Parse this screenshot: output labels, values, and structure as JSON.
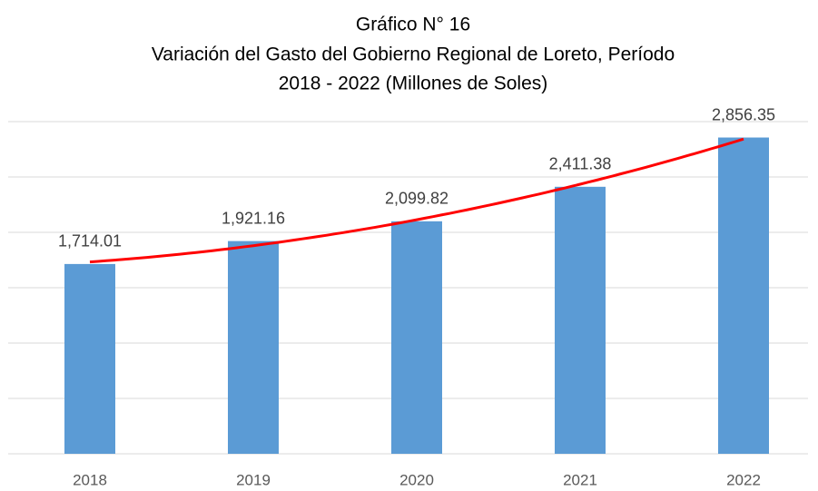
{
  "chart_data": {
    "type": "bar",
    "title": [
      "Gráfico N° 16",
      "Variación del Gasto del Gobierno Regional de Loreto, Período",
      "2018 - 2022 (Millones de Soles)"
    ],
    "categories": [
      "2018",
      "2019",
      "2020",
      "2021",
      "2022"
    ],
    "values": [
      1714.01,
      1921.16,
      2099.82,
      2411.38,
      2856.35
    ],
    "value_labels": [
      "1,714.01",
      "1,921.16",
      "2,099.82",
      "2,411.38",
      "2,856.35"
    ],
    "color": "#5b9bd5",
    "ylim": [
      0,
      3000
    ],
    "yticks": [
      0,
      500,
      1000,
      1500,
      2000,
      2500,
      3000
    ],
    "grid": true,
    "trendline": {
      "order": 2,
      "color": "#ff0000"
    }
  }
}
